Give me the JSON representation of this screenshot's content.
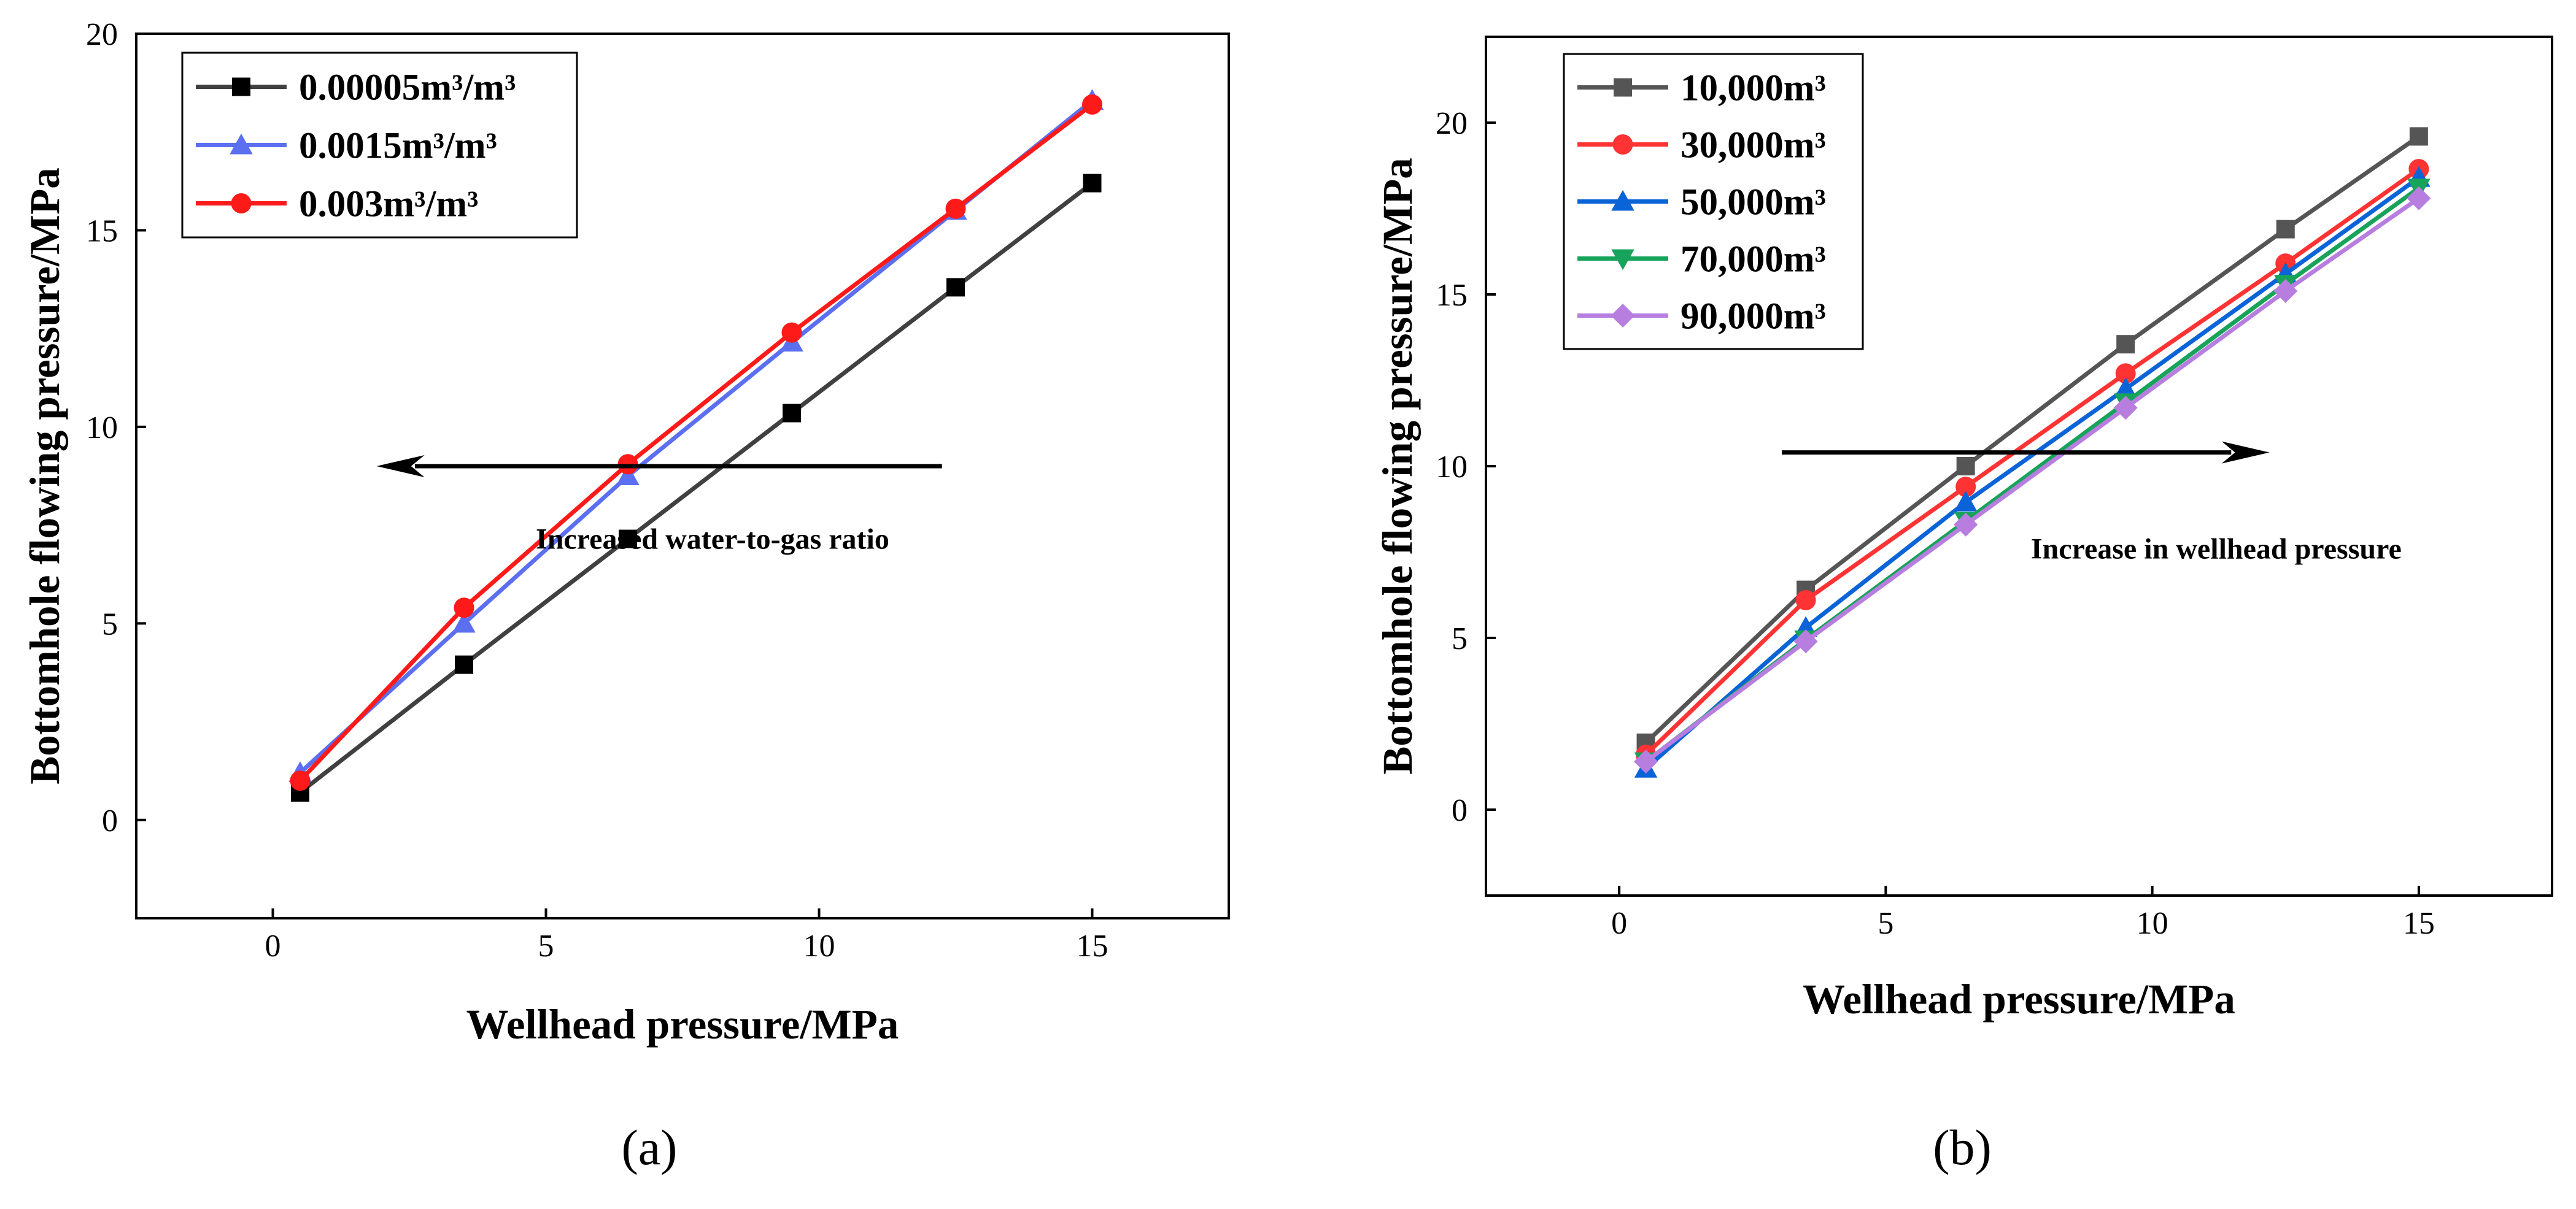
{
  "chart_data": [
    {
      "type": "line",
      "panel_label": "(a)",
      "xlabel": "Wellhead pressure/MPa",
      "ylabel": "Bottomhole flowing pressure/MPa",
      "xlim": [
        -2.5,
        17.5
      ],
      "ylim": [
        -2.5,
        20
      ],
      "xticks": [
        0,
        5,
        10,
        15
      ],
      "yticks": [
        0,
        5,
        10,
        15,
        20
      ],
      "grid": false,
      "legend_position": "top-left",
      "x": [
        0.5,
        3.5,
        6.5,
        9.5,
        12.5,
        15
      ],
      "series": [
        {
          "name": "0.00005m³/m³",
          "marker": "square",
          "color": "#000000",
          "line_color": "#404040",
          "values": [
            0.7,
            3.95,
            7.15,
            10.35,
            13.55,
            16.2
          ]
        },
        {
          "name": "0.0015m³/m³",
          "marker": "triangle",
          "color": "#5b6ff0",
          "line_color": "#5b6ff0",
          "values": [
            1.2,
            5.0,
            8.75,
            12.15,
            15.5,
            18.3
          ]
        },
        {
          "name": "0.003m³/m³",
          "marker": "circle",
          "color": "#ff1a1a",
          "line_color": "#ff1a1a",
          "values": [
            1.0,
            5.4,
            9.05,
            12.4,
            15.55,
            18.2
          ]
        }
      ],
      "annotations": [
        {
          "text": "Increased water-to-gas ratio",
          "arrow_from": [
            12.25,
            9.0
          ],
          "arrow_to": [
            1.9,
            9.0
          ],
          "text_anchor": [
            8.05,
            7.15
          ]
        }
      ]
    },
    {
      "type": "line",
      "panel_label": "(b)",
      "xlabel": "Wellhead pressure/MPa",
      "ylabel": "Bottomhole flowing pressure/MPa",
      "xlim": [
        -2.5,
        17.5
      ],
      "ylim": [
        -2.5,
        22.5
      ],
      "xticks": [
        0,
        5,
        10,
        15
      ],
      "yticks": [
        0,
        5,
        10,
        15,
        20
      ],
      "grid": false,
      "legend_position": "top-left",
      "x": [
        0.5,
        3.5,
        6.5,
        9.5,
        12.5,
        15
      ],
      "series": [
        {
          "name": "10,000m³",
          "marker": "square",
          "color": "#555555",
          "line_color": "#555555",
          "values": [
            1.95,
            6.4,
            10.0,
            13.55,
            16.9,
            19.6
          ]
        },
        {
          "name": "30,000m³",
          "marker": "circle",
          "color": "#ff3333",
          "line_color": "#ff3333",
          "values": [
            1.6,
            6.1,
            9.4,
            12.7,
            15.9,
            18.65
          ]
        },
        {
          "name": "50,000m³",
          "marker": "triangle",
          "color": "#0a64d8",
          "line_color": "#0a64d8",
          "values": [
            1.2,
            5.3,
            8.95,
            12.25,
            15.6,
            18.4
          ]
        },
        {
          "name": "70,000m³",
          "marker": "triangle-down",
          "color": "#17a35a",
          "line_color": "#17a35a",
          "values": [
            1.4,
            4.95,
            8.4,
            11.85,
            15.3,
            18.1
          ]
        },
        {
          "name": "90,000m³",
          "marker": "diamond",
          "color": "#b77ee0",
          "line_color": "#b77ee0",
          "values": [
            1.4,
            4.9,
            8.3,
            11.7,
            15.1,
            17.8
          ]
        }
      ],
      "annotations": [
        {
          "text": "Increase in wellhead pressure",
          "arrow_from": [
            3.05,
            10.4
          ],
          "arrow_to": [
            12.2,
            10.4
          ],
          "text_anchor": [
            11.2,
            7.6
          ]
        }
      ]
    }
  ]
}
